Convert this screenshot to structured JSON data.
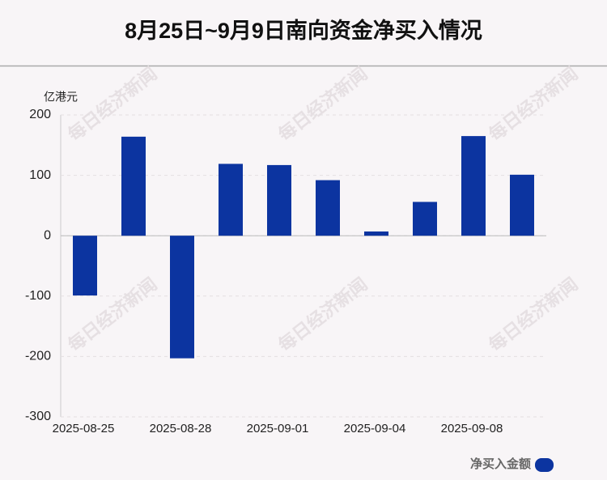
{
  "chart_data": {
    "type": "bar",
    "title": "8月25日~9月9日南向资金净买入情况",
    "y_label": "亿港元",
    "watermark": "每日经济新闻",
    "categories": [
      "2025-08-25",
      null,
      "2025-08-28",
      null,
      "2025-09-01",
      null,
      "2025-09-04",
      null,
      "2025-09-08",
      null
    ],
    "series": [
      {
        "name": "净买入金额",
        "color": "#0c34a0",
        "values": [
          -99,
          164,
          -203,
          119,
          117,
          92,
          7,
          56,
          165,
          101
        ]
      }
    ],
    "ylim": [
      -300,
      200
    ],
    "yticks": [
      -300,
      -200,
      -100,
      0,
      100,
      200
    ],
    "grid": true
  }
}
